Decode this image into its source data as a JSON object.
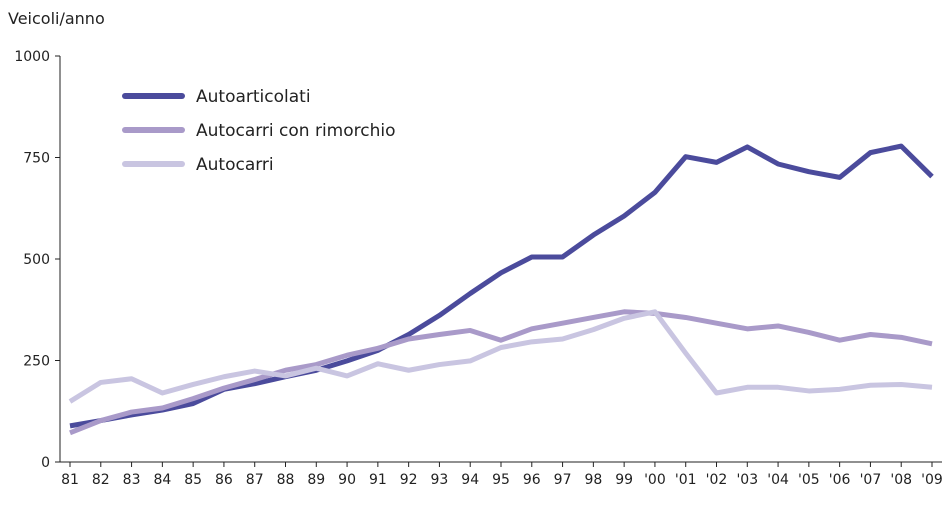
{
  "chart_data": {
    "type": "line",
    "y_label": "Veicoli/anno",
    "categories": [
      "81",
      "82",
      "83",
      "84",
      "85",
      "86",
      "87",
      "88",
      "89",
      "90",
      "91",
      "92",
      "93",
      "94",
      "95",
      "96",
      "97",
      "98",
      "99",
      "'00",
      "'01",
      "'02",
      "'03",
      "'04",
      "'05",
      "'06",
      "'07",
      "'08",
      "'09"
    ],
    "series": [
      {
        "name": "Autoarticolati",
        "color": "#4b4b9c",
        "values": [
          89,
          102,
          116,
          128,
          144,
          179,
          193,
          210,
          226,
          249,
          275,
          314,
          361,
          415,
          466,
          505,
          505,
          559,
          606,
          664,
          752,
          738,
          776,
          734,
          715,
          701,
          762,
          778,
          703
        ]
      },
      {
        "name": "Autocarri con rimorchio",
        "color": "#a99ac9",
        "values": [
          72,
          102,
          123,
          133,
          156,
          182,
          203,
          226,
          240,
          263,
          280,
          303,
          314,
          324,
          300,
          328,
          342,
          356,
          370,
          366,
          356,
          342,
          328,
          335,
          319,
          300,
          314,
          307,
          291
        ]
      },
      {
        "name": "Autocarri",
        "color": "#c9c5e1",
        "values": [
          149,
          196,
          205,
          170,
          191,
          210,
          224,
          212,
          231,
          212,
          242,
          226,
          240,
          249,
          282,
          296,
          303,
          326,
          354,
          370,
          268,
          170,
          184,
          184,
          175,
          179,
          189,
          191,
          184
        ]
      }
    ],
    "ylim": [
      0,
      1000
    ],
    "yticks": [
      0,
      250,
      500,
      750,
      1000
    ],
    "legend": "top-left"
  }
}
